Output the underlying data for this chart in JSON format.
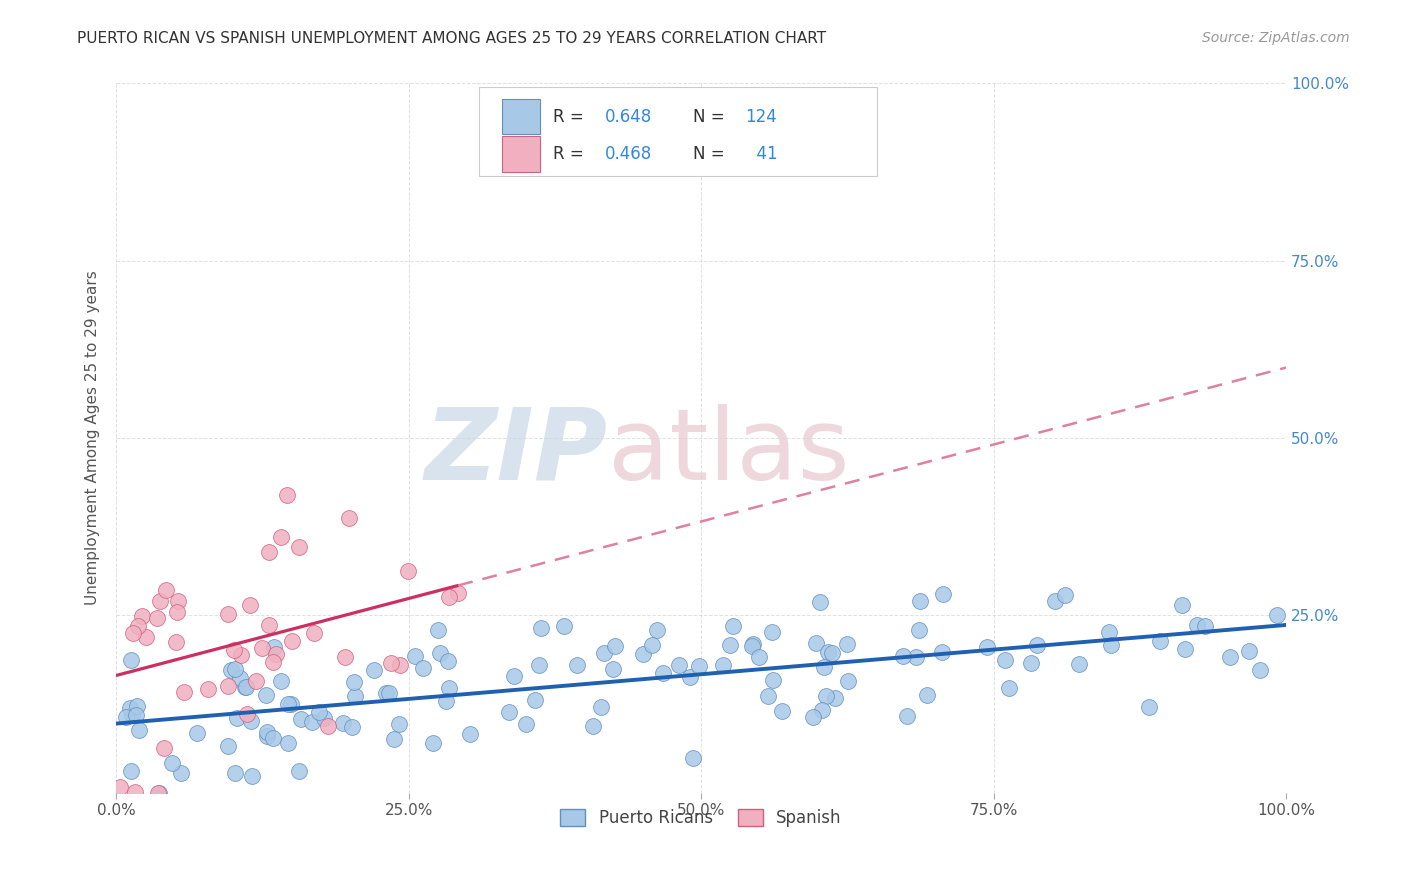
{
  "title": "PUERTO RICAN VS SPANISH UNEMPLOYMENT AMONG AGES 25 TO 29 YEARS CORRELATION CHART",
  "source": "Source: ZipAtlas.com",
  "ylabel": "Unemployment Among Ages 25 to 29 years",
  "xlim": [
    0,
    1
  ],
  "ylim": [
    0,
    1
  ],
  "xticks": [
    0.0,
    0.25,
    0.5,
    0.75,
    1.0
  ],
  "yticks": [
    0.0,
    0.25,
    0.5,
    0.75,
    1.0
  ],
  "xticklabels": [
    "0.0%",
    "25.0%",
    "50.0%",
    "75.0%",
    "100.0%"
  ],
  "yticklabels_right": [
    "",
    "25.0%",
    "50.0%",
    "75.0%",
    "100.0%"
  ],
  "puerto_rican_color": "#A8C8E8",
  "puerto_rican_edge": "#6090C0",
  "spanish_color": "#F0B0C0",
  "spanish_edge": "#D06080",
  "trend_pr_color": "#2060B0",
  "trend_sp_color": "#CC3060",
  "trend_sp_dash_color": "#E080A0",
  "R_pr": 0.648,
  "N_pr": 124,
  "R_sp": 0.468,
  "N_sp": 41,
  "legend_label_pr": "Puerto Ricans",
  "legend_label_sp": "Spanish",
  "background_color": "#FFFFFF",
  "grid_color": "#CCCCCC",
  "watermark_zip_color": "#C8D8E8",
  "watermark_atlas_color": "#E8C8D0"
}
